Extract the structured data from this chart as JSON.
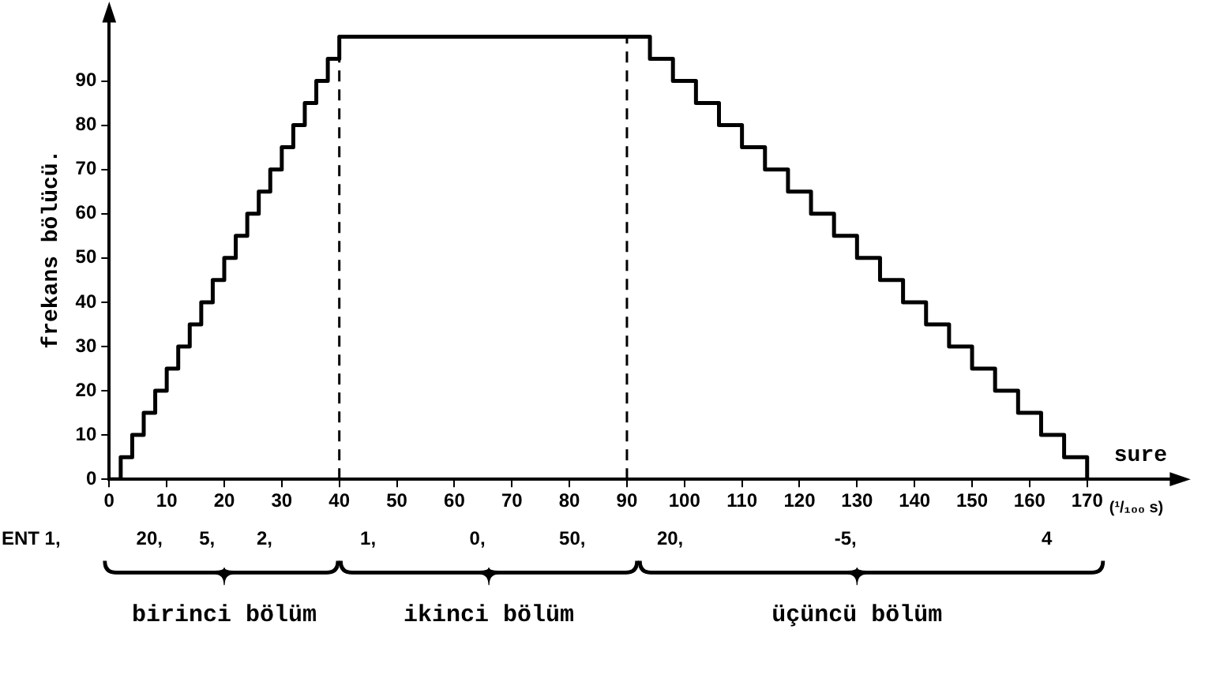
{
  "chart_data": {
    "type": "step",
    "xlabel": "sure",
    "ylabel": "frekans bölücü.",
    "x": [
      0,
      2,
      4,
      6,
      8,
      10,
      12,
      14,
      16,
      18,
      20,
      22,
      24,
      26,
      28,
      30,
      32,
      34,
      36,
      38,
      40,
      94,
      98,
      102,
      106,
      110,
      114,
      118,
      122,
      126,
      130,
      134,
      138,
      142,
      146,
      150,
      154,
      158,
      162,
      166,
      170
    ],
    "series": [
      {
        "color": "#000000",
        "values": [
          0,
          5,
          10,
          15,
          20,
          25,
          30,
          35,
          40,
          45,
          50,
          55,
          60,
          65,
          70,
          75,
          80,
          85,
          90,
          95,
          100,
          95,
          90,
          85,
          80,
          75,
          70,
          65,
          60,
          55,
          50,
          45,
          40,
          35,
          30,
          25,
          20,
          15,
          10,
          5,
          0
        ]
      }
    ],
    "xlim": [
      0,
      185
    ],
    "ylim": [
      0,
      104
    ],
    "xticks": [
      0,
      10,
      20,
      30,
      40,
      50,
      60,
      70,
      80,
      90,
      100,
      110,
      120,
      130,
      140,
      150,
      160,
      170
    ],
    "yticks": [
      0,
      10,
      20,
      30,
      40,
      50,
      60,
      70,
      80,
      90
    ],
    "ref_lines": [
      {
        "axis": "x",
        "value": 40,
        "color": "#000000",
        "line_style": "dashed"
      },
      {
        "axis": "x",
        "value": 90,
        "color": "#000000",
        "line_style": "dashed"
      }
    ],
    "grid": false,
    "legend": false,
    "marker": "none",
    "line_style": "solid",
    "annotations": [
      "(¹/₁₀₀ s)",
      "ENT 1,",
      "20,",
      "5,",
      "2,",
      "1,",
      "0,",
      "50,",
      "20,",
      "-5,",
      "4",
      "birinci bölüm",
      "ikinci bölüm",
      "üçüncü bölüm"
    ]
  }
}
